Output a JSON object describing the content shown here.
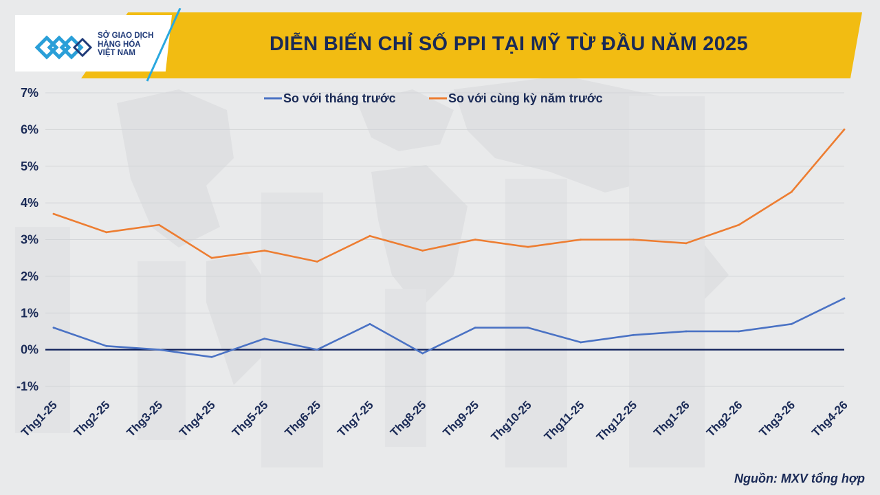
{
  "header": {
    "title": "DIỄN BIẾN CHỈ SỐ PPI TẠI MỸ TỪ ĐẦU NĂM 2025",
    "logo_lines": [
      "SỞ GIAO DỊCH",
      "HÀNG HÓA",
      "VIỆT NAM"
    ]
  },
  "colors": {
    "header_band": "#f2bc12",
    "text": "#1a2a56",
    "series_mom": "#4a72c4",
    "series_yoy": "#ed7d31",
    "zero_line": "#0e1f5a"
  },
  "chart_data": {
    "type": "line",
    "title": "DIỄN BIẾN CHỈ SỐ PPI TẠI MỸ TỪ ĐẦU NĂM 2025",
    "xlabel": "",
    "ylabel": "",
    "categories": [
      "Thg1-25",
      "Thg2-25",
      "Thg3-25",
      "Thg4-25",
      "Thg5-25",
      "Thg6-25",
      "Thg7-25",
      "Thg8-25",
      "Thg9-25",
      "Thg10-25",
      "Thg11-25",
      "Thg12-25",
      "Thg1-26",
      "Thg2-26",
      "Thg3-26",
      "Thg4-26"
    ],
    "ylim": [
      -1,
      7
    ],
    "yticks": [
      -1,
      0,
      1,
      2,
      3,
      4,
      5,
      6,
      7
    ],
    "ytick_labels": [
      "-1%",
      "0%",
      "1%",
      "2%",
      "3%",
      "4%",
      "5%",
      "6%",
      "7%"
    ],
    "grid": "horizontal",
    "legend_position": "top-left",
    "series": [
      {
        "name": "So với tháng trước",
        "color": "#4a72c4",
        "values": [
          0.6,
          0.1,
          0.0,
          -0.2,
          0.3,
          0.0,
          0.7,
          -0.1,
          0.6,
          0.6,
          0.2,
          0.4,
          0.5,
          0.5,
          0.7,
          1.4
        ]
      },
      {
        "name": "So với cùng kỳ năm trước",
        "color": "#ed7d31",
        "values": [
          3.7,
          3.2,
          3.4,
          2.5,
          2.7,
          2.4,
          3.1,
          2.7,
          3.0,
          2.8,
          3.0,
          3.0,
          2.9,
          3.4,
          4.3,
          6.0
        ]
      }
    ]
  },
  "source": "Nguồn: MXV tổng hợp"
}
